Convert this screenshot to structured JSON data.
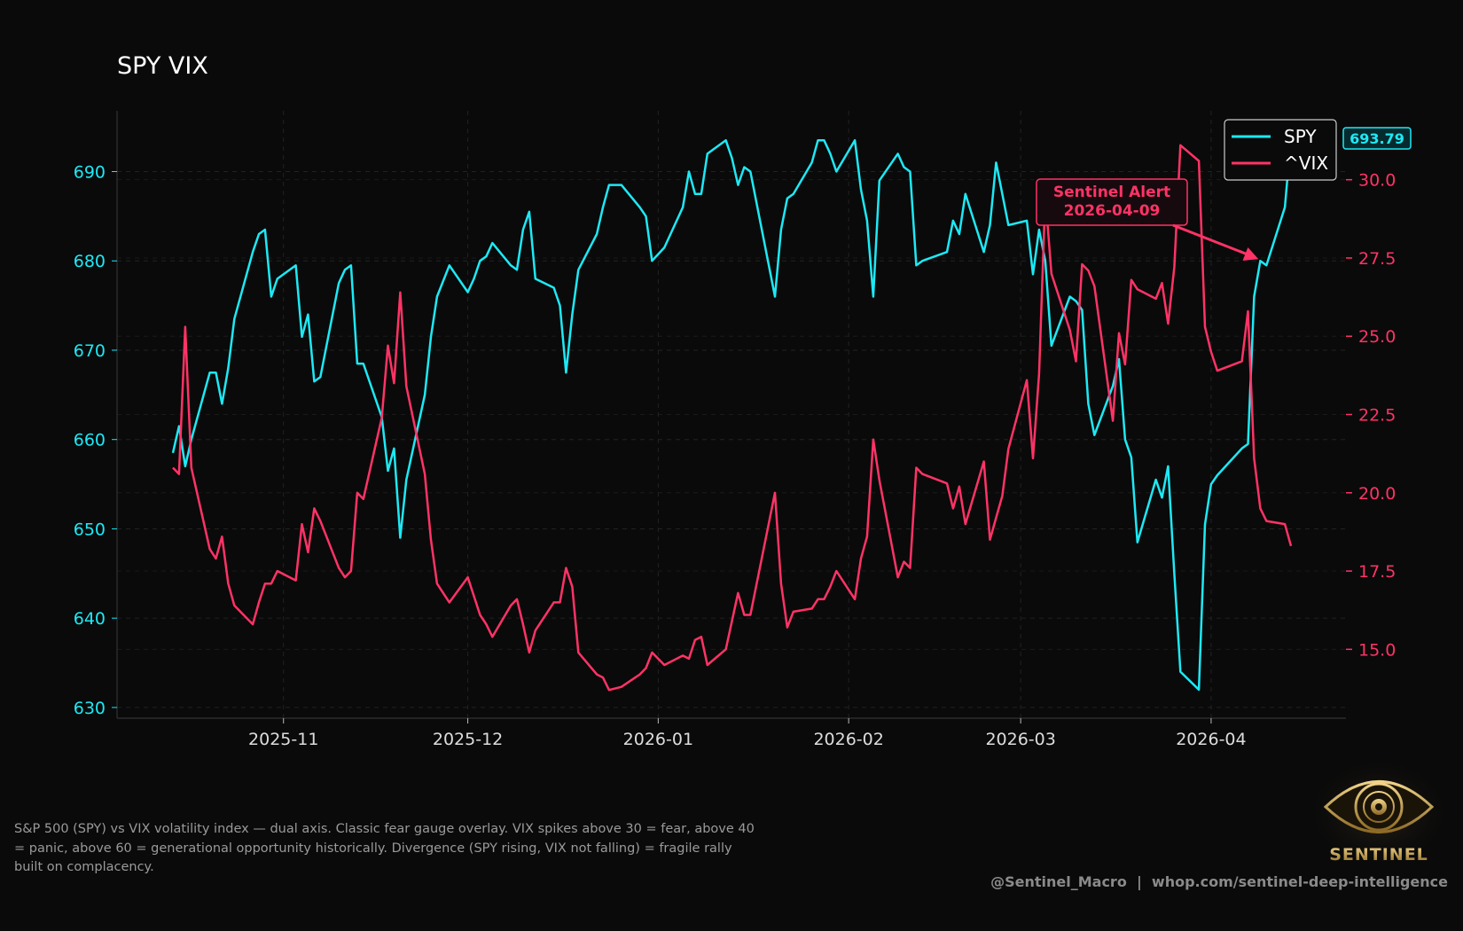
{
  "colors": {
    "background": "#0a0a0a",
    "spy": "#1de9f5",
    "vix": "#ff3366",
    "grid": "#222222",
    "text": "#dddddd",
    "logo_gold": "#c9a24a"
  },
  "caption": "S&P 500 (SPY) vs VIX volatility index — dual axis. Classic fear gauge overlay. VIX spikes above 30 = fear, above 40 = panic, above 60 = generational opportunity historically. Divergence (SPY rising, VIX not falling) = fragile rally built on complacency.",
  "footer": "@Sentinel_Macro  |  whop.com/sentinel-deep-intelligence",
  "logo": {
    "text": "SENTINEL",
    "icon": "eye-icon"
  },
  "chart_data": {
    "type": "line",
    "title": "SPY VIX",
    "x_start": "2025-10-14",
    "x_end": "2026-04-14",
    "x_ticks": [
      "2025-11-01",
      "2025-12-01",
      "2026-01-01",
      "2026-02-01",
      "2026-03-01",
      "2026-04-01"
    ],
    "x_tick_labels": [
      "2025-11",
      "2025-12",
      "2026-01",
      "2026-02",
      "2026-03",
      "2026-04"
    ],
    "left_axis": {
      "ticks": [
        630,
        640,
        650,
        660,
        670,
        680,
        690
      ],
      "ylim": [
        628.8,
        696.8
      ]
    },
    "right_axis": {
      "ticks": [
        15.0,
        17.5,
        20.0,
        22.5,
        25.0,
        27.5,
        30.0
      ],
      "tick_labels": [
        "15.0",
        "17.5",
        "20.0",
        "22.5",
        "25.0",
        "27.5",
        "30.0"
      ],
      "ylim": [
        12.8,
        32.2
      ]
    },
    "grid": true,
    "legend": {
      "position": "top-right",
      "entries": [
        "SPY",
        "^VIX"
      ]
    },
    "last_value_badge": "693.79",
    "annotation": {
      "text": [
        "Sentinel Alert",
        "2026-04-09"
      ],
      "x": "2026-04-09",
      "y_spy": 680
    },
    "series": [
      {
        "name": "SPY",
        "axis": "left",
        "points": [
          [
            "2025-10-14",
            658.5
          ],
          [
            "2025-10-15",
            661.5
          ],
          [
            "2025-10-16",
            657
          ],
          [
            "2025-10-17",
            660
          ],
          [
            "2025-10-20",
            667.5
          ],
          [
            "2025-10-21",
            667.5
          ],
          [
            "2025-10-22",
            664
          ],
          [
            "2025-10-23",
            668
          ],
          [
            "2025-10-24",
            673.5
          ],
          [
            "2025-10-27",
            681
          ],
          [
            "2025-10-28",
            683
          ],
          [
            "2025-10-29",
            683.5
          ],
          [
            "2025-10-30",
            676
          ],
          [
            "2025-10-31",
            678
          ],
          [
            "2025-11-03",
            679.5
          ],
          [
            "2025-11-04",
            671.5
          ],
          [
            "2025-11-05",
            674
          ],
          [
            "2025-11-06",
            666.5
          ],
          [
            "2025-11-07",
            667
          ],
          [
            "2025-11-10",
            677.5
          ],
          [
            "2025-11-11",
            679
          ],
          [
            "2025-11-12",
            679.5
          ],
          [
            "2025-11-13",
            668.5
          ],
          [
            "2025-11-14",
            668.5
          ],
          [
            "2025-11-17",
            662.5
          ],
          [
            "2025-11-18",
            656.5
          ],
          [
            "2025-11-19",
            659
          ],
          [
            "2025-11-20",
            649
          ],
          [
            "2025-11-21",
            655.5
          ],
          [
            "2025-11-24",
            665
          ],
          [
            "2025-11-25",
            671.5
          ],
          [
            "2025-11-26",
            676
          ],
          [
            "2025-11-28",
            679.5
          ],
          [
            "2025-12-01",
            676.5
          ],
          [
            "2025-12-02",
            678
          ],
          [
            "2025-12-03",
            680
          ],
          [
            "2025-12-04",
            680.5
          ],
          [
            "2025-12-05",
            682
          ],
          [
            "2025-12-08",
            679.5
          ],
          [
            "2025-12-09",
            679
          ],
          [
            "2025-12-10",
            683.5
          ],
          [
            "2025-12-11",
            685.5
          ],
          [
            "2025-12-12",
            678
          ],
          [
            "2025-12-15",
            677
          ],
          [
            "2025-12-16",
            675
          ],
          [
            "2025-12-17",
            667.5
          ],
          [
            "2025-12-18",
            674
          ],
          [
            "2025-12-19",
            679
          ],
          [
            "2025-12-22",
            683
          ],
          [
            "2025-12-23",
            686
          ],
          [
            "2025-12-24",
            688.5
          ],
          [
            "2025-12-26",
            688.5
          ],
          [
            "2025-12-29",
            686
          ],
          [
            "2025-12-30",
            685
          ],
          [
            "2025-12-31",
            680
          ],
          [
            "2026-01-02",
            681.5
          ],
          [
            "2026-01-05",
            686
          ],
          [
            "2026-01-06",
            690
          ],
          [
            "2026-01-07",
            687.5
          ],
          [
            "2026-01-08",
            687.5
          ],
          [
            "2026-01-09",
            692
          ],
          [
            "2026-01-12",
            693.5
          ],
          [
            "2026-01-13",
            691.5
          ],
          [
            "2026-01-14",
            688.5
          ],
          [
            "2026-01-15",
            690.5
          ],
          [
            "2026-01-16",
            690
          ],
          [
            "2026-01-20",
            676
          ],
          [
            "2026-01-21",
            683.5
          ],
          [
            "2026-01-22",
            687
          ],
          [
            "2026-01-23",
            687.5
          ],
          [
            "2026-01-26",
            691
          ],
          [
            "2026-01-27",
            693.5
          ],
          [
            "2026-01-28",
            693.5
          ],
          [
            "2026-01-29",
            692
          ],
          [
            "2026-01-30",
            690
          ],
          [
            "2026-02-02",
            693.5
          ],
          [
            "2026-02-03",
            688
          ],
          [
            "2026-02-04",
            684.5
          ],
          [
            "2026-02-05",
            676
          ],
          [
            "2026-02-06",
            689
          ],
          [
            "2026-02-09",
            692
          ],
          [
            "2026-02-10",
            690.5
          ],
          [
            "2026-02-11",
            690
          ],
          [
            "2026-02-12",
            679.5
          ],
          [
            "2026-02-13",
            680
          ],
          [
            "2026-02-17",
            681
          ],
          [
            "2026-02-18",
            684.5
          ],
          [
            "2026-02-19",
            683
          ],
          [
            "2026-02-20",
            687.5
          ],
          [
            "2026-02-23",
            681
          ],
          [
            "2026-02-24",
            684
          ],
          [
            "2026-02-25",
            691
          ],
          [
            "2026-02-26",
            687.5
          ],
          [
            "2026-02-27",
            684
          ],
          [
            "2026-03-02",
            684.5
          ],
          [
            "2026-03-03",
            678.5
          ],
          [
            "2026-03-04",
            683.5
          ],
          [
            "2026-03-05",
            680
          ],
          [
            "2026-03-06",
            670.5
          ],
          [
            "2026-03-09",
            676
          ],
          [
            "2026-03-10",
            675.5
          ],
          [
            "2026-03-11",
            674.5
          ],
          [
            "2026-03-12",
            664
          ],
          [
            "2026-03-13",
            660.5
          ],
          [
            "2026-03-16",
            666
          ],
          [
            "2026-03-17",
            669
          ],
          [
            "2026-03-18",
            660
          ],
          [
            "2026-03-19",
            658
          ],
          [
            "2026-03-20",
            648.5
          ],
          [
            "2026-03-23",
            655.5
          ],
          [
            "2026-03-24",
            653.5
          ],
          [
            "2026-03-25",
            657
          ],
          [
            "2026-03-26",
            645
          ],
          [
            "2026-03-27",
            634
          ],
          [
            "2026-03-30",
            632
          ],
          [
            "2026-03-31",
            650.5
          ],
          [
            "2026-04-01",
            655
          ],
          [
            "2026-04-02",
            656
          ],
          [
            "2026-04-06",
            659
          ],
          [
            "2026-04-07",
            659.5
          ],
          [
            "2026-04-08",
            676
          ],
          [
            "2026-04-09",
            680
          ],
          [
            "2026-04-10",
            679.5
          ],
          [
            "2026-04-13",
            686
          ],
          [
            "2026-04-14",
            693.79
          ]
        ]
      },
      {
        "name": "^VIX",
        "axis": "right",
        "points": [
          [
            "2025-10-14",
            20.8
          ],
          [
            "2025-10-15",
            20.6
          ],
          [
            "2025-10-16",
            25.3
          ],
          [
            "2025-10-17",
            20.8
          ],
          [
            "2025-10-20",
            18.2
          ],
          [
            "2025-10-21",
            17.9
          ],
          [
            "2025-10-22",
            18.6
          ],
          [
            "2025-10-23",
            17.1
          ],
          [
            "2025-10-24",
            16.4
          ],
          [
            "2025-10-27",
            15.8
          ],
          [
            "2025-10-28",
            16.5
          ],
          [
            "2025-10-29",
            17.1
          ],
          [
            "2025-10-30",
            17.1
          ],
          [
            "2025-10-31",
            17.5
          ],
          [
            "2025-11-03",
            17.2
          ],
          [
            "2025-11-04",
            19.0
          ],
          [
            "2025-11-05",
            18.1
          ],
          [
            "2025-11-06",
            19.5
          ],
          [
            "2025-11-07",
            19.1
          ],
          [
            "2025-11-10",
            17.6
          ],
          [
            "2025-11-11",
            17.3
          ],
          [
            "2025-11-12",
            17.5
          ],
          [
            "2025-11-13",
            20.0
          ],
          [
            "2025-11-14",
            19.8
          ],
          [
            "2025-11-17",
            22.4
          ],
          [
            "2025-11-18",
            24.7
          ],
          [
            "2025-11-19",
            23.5
          ],
          [
            "2025-11-20",
            26.4
          ],
          [
            "2025-11-21",
            23.4
          ],
          [
            "2025-11-24",
            20.6
          ],
          [
            "2025-11-25",
            18.5
          ],
          [
            "2025-11-26",
            17.1
          ],
          [
            "2025-11-28",
            16.5
          ],
          [
            "2025-12-01",
            17.3
          ],
          [
            "2025-12-02",
            16.7
          ],
          [
            "2025-12-03",
            16.1
          ],
          [
            "2025-12-04",
            15.8
          ],
          [
            "2025-12-05",
            15.4
          ],
          [
            "2025-12-08",
            16.4
          ],
          [
            "2025-12-09",
            16.6
          ],
          [
            "2025-12-10",
            15.8
          ],
          [
            "2025-12-11",
            14.9
          ],
          [
            "2025-12-12",
            15.6
          ],
          [
            "2025-12-15",
            16.5
          ],
          [
            "2025-12-16",
            16.5
          ],
          [
            "2025-12-17",
            17.6
          ],
          [
            "2025-12-18",
            17.0
          ],
          [
            "2025-12-19",
            14.9
          ],
          [
            "2025-12-22",
            14.2
          ],
          [
            "2025-12-23",
            14.1
          ],
          [
            "2025-12-24",
            13.7
          ],
          [
            "2025-12-26",
            13.8
          ],
          [
            "2025-12-29",
            14.2
          ],
          [
            "2025-12-30",
            14.4
          ],
          [
            "2025-12-31",
            14.9
          ],
          [
            "2026-01-02",
            14.5
          ],
          [
            "2026-01-05",
            14.8
          ],
          [
            "2026-01-06",
            14.7
          ],
          [
            "2026-01-07",
            15.3
          ],
          [
            "2026-01-08",
            15.4
          ],
          [
            "2026-01-09",
            14.5
          ],
          [
            "2026-01-12",
            15.0
          ],
          [
            "2026-01-13",
            15.9
          ],
          [
            "2026-01-14",
            16.8
          ],
          [
            "2026-01-15",
            16.1
          ],
          [
            "2026-01-16",
            16.1
          ],
          [
            "2026-01-20",
            20.0
          ],
          [
            "2026-01-21",
            17.1
          ],
          [
            "2026-01-22",
            15.7
          ],
          [
            "2026-01-23",
            16.2
          ],
          [
            "2026-01-26",
            16.3
          ],
          [
            "2026-01-27",
            16.6
          ],
          [
            "2026-01-28",
            16.6
          ],
          [
            "2026-01-29",
            17.0
          ],
          [
            "2026-01-30",
            17.5
          ],
          [
            "2026-02-02",
            16.6
          ],
          [
            "2026-02-03",
            17.9
          ],
          [
            "2026-02-04",
            18.6
          ],
          [
            "2026-02-05",
            21.7
          ],
          [
            "2026-02-06",
            20.4
          ],
          [
            "2026-02-09",
            17.3
          ],
          [
            "2026-02-10",
            17.8
          ],
          [
            "2026-02-11",
            17.6
          ],
          [
            "2026-02-12",
            20.8
          ],
          [
            "2026-02-13",
            20.6
          ],
          [
            "2026-02-17",
            20.3
          ],
          [
            "2026-02-18",
            19.5
          ],
          [
            "2026-02-19",
            20.2
          ],
          [
            "2026-02-20",
            19.0
          ],
          [
            "2026-02-23",
            21.0
          ],
          [
            "2026-02-24",
            18.5
          ],
          [
            "2026-02-25",
            19.2
          ],
          [
            "2026-02-26",
            19.9
          ],
          [
            "2026-02-27",
            21.4
          ],
          [
            "2026-03-02",
            23.6
          ],
          [
            "2026-03-03",
            21.1
          ],
          [
            "2026-03-04",
            23.8
          ],
          [
            "2026-03-05",
            29.5
          ],
          [
            "2026-03-06",
            27.0
          ],
          [
            "2026-03-09",
            25.2
          ],
          [
            "2026-03-10",
            24.2
          ],
          [
            "2026-03-11",
            27.3
          ],
          [
            "2026-03-12",
            27.1
          ],
          [
            "2026-03-13",
            26.6
          ],
          [
            "2026-03-16",
            22.3
          ],
          [
            "2026-03-17",
            25.1
          ],
          [
            "2026-03-18",
            24.1
          ],
          [
            "2026-03-19",
            26.8
          ],
          [
            "2026-03-20",
            26.5
          ],
          [
            "2026-03-23",
            26.2
          ],
          [
            "2026-03-24",
            26.7
          ],
          [
            "2026-03-25",
            25.4
          ],
          [
            "2026-03-26",
            27.2
          ],
          [
            "2026-03-27",
            31.1
          ],
          [
            "2026-03-30",
            30.6
          ],
          [
            "2026-03-31",
            25.3
          ],
          [
            "2026-04-01",
            24.5
          ],
          [
            "2026-04-02",
            23.9
          ],
          [
            "2026-04-06",
            24.2
          ],
          [
            "2026-04-07",
            25.8
          ],
          [
            "2026-04-08",
            21.1
          ],
          [
            "2026-04-09",
            19.5
          ],
          [
            "2026-04-10",
            19.1
          ],
          [
            "2026-04-13",
            19.0
          ],
          [
            "2026-04-14",
            18.3
          ]
        ]
      }
    ]
  }
}
